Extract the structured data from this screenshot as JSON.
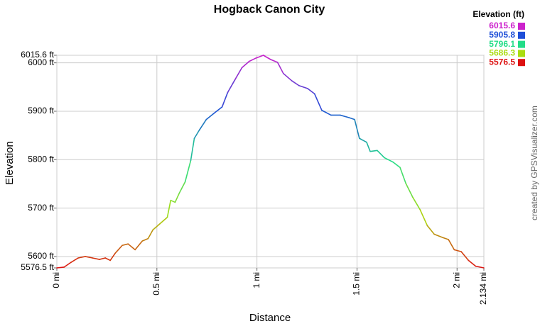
{
  "chart_data": {
    "type": "line",
    "title": "Hogback Canon City",
    "x_label": "Distance",
    "y_label": "Elevation",
    "credit": "created by GPSVisualizer.com",
    "grid": true,
    "legend": {
      "title": "Elevation (ft)",
      "position": "top-right",
      "entries": [
        {
          "value": 6015.6,
          "color": "#cc22cc"
        },
        {
          "value": 5905.8,
          "color": "#1f4fd8"
        },
        {
          "value": 5796.1,
          "color": "#22dd88"
        },
        {
          "value": 5686.3,
          "color": "#aadd11"
        },
        {
          "value": 5576.5,
          "color": "#dd1111"
        }
      ]
    },
    "xlim": [
      0,
      2.134
    ],
    "xticks": [
      {
        "value": 0,
        "label": "0 mi"
      },
      {
        "value": 0.5,
        "label": "0.5 mi"
      },
      {
        "value": 1,
        "label": "1 mi"
      },
      {
        "value": 1.5,
        "label": "1.5 mi"
      },
      {
        "value": 2,
        "label": "2 mi"
      },
      {
        "value": 2.134,
        "label": "2.134 mi"
      }
    ],
    "ylim": [
      5576.5,
      6015.6
    ],
    "yticks": [
      {
        "value": 5576.5,
        "label": "5576.5 ft"
      },
      {
        "value": 5600,
        "label": "5600 ft"
      },
      {
        "value": 5700,
        "label": "5700 ft"
      },
      {
        "value": 5800,
        "label": "5800 ft"
      },
      {
        "value": 5900,
        "label": "5900 ft"
      },
      {
        "value": 6000,
        "label": "6000 ft"
      },
      {
        "value": 6015.6,
        "label": "6015.6 ft"
      }
    ],
    "x": [
      0,
      0.036,
      0.071,
      0.107,
      0.142,
      0.178,
      0.213,
      0.242,
      0.267,
      0.292,
      0.327,
      0.356,
      0.391,
      0.427,
      0.456,
      0.48,
      0.516,
      0.552,
      0.569,
      0.591,
      0.612,
      0.641,
      0.669,
      0.687,
      0.712,
      0.747,
      0.783,
      0.826,
      0.854,
      0.89,
      0.925,
      0.961,
      0.996,
      1.032,
      1.068,
      1.103,
      1.132,
      1.174,
      1.21,
      1.253,
      1.288,
      1.324,
      1.37,
      1.416,
      1.459,
      1.488,
      1.512,
      1.548,
      1.566,
      1.601,
      1.637,
      1.68,
      1.715,
      1.744,
      1.779,
      1.815,
      1.851,
      1.886,
      1.929,
      1.957,
      1.986,
      2.021,
      2.057,
      2.093,
      2.134
    ],
    "values": [
      5576.5,
      5578,
      5588,
      5597,
      5600,
      5597,
      5594,
      5597,
      5592,
      5607,
      5623,
      5626,
      5614,
      5632,
      5637,
      5655,
      5668,
      5681,
      5716,
      5712,
      5731,
      5754,
      5798,
      5844,
      5861,
      5883,
      5895,
      5909,
      5939,
      5965,
      5990,
      6003,
      6010,
      6015.6,
      6007,
      6001,
      5978,
      5963,
      5953,
      5947,
      5936,
      5902,
      5892,
      5892,
      5887,
      5883,
      5844,
      5836,
      5817,
      5819,
      5804,
      5795,
      5784,
      5751,
      5722,
      5697,
      5664,
      5646,
      5639,
      5635,
      5614,
      5610,
      5592,
      5580,
      5576.5
    ]
  }
}
